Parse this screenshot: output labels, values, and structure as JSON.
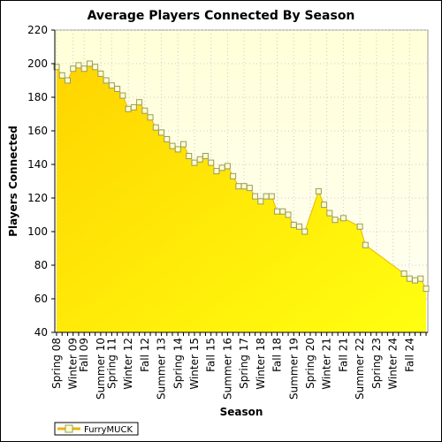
{
  "chart_data": {
    "type": "area",
    "title": "Average Players Connected By Season",
    "xlabel": "Season",
    "ylabel": "Players Connected",
    "ylim": [
      40,
      220
    ],
    "yticks": [
      40,
      60,
      80,
      100,
      120,
      140,
      160,
      180,
      200,
      220
    ],
    "grid": true,
    "legend_position": "bottom-left",
    "colors": {
      "area_top": "#ffd700",
      "area_bottom": "#ffff00",
      "plot_bg_top": "#ffffd8",
      "plot_bg_bottom": "#fffff0",
      "marker_fill": "#ffffcc",
      "marker_stroke": "#999966"
    },
    "x_tick_labels": [
      {
        "index": 0,
        "label": "Spring 08"
      },
      {
        "index": 3,
        "label": "Winter 09"
      },
      {
        "index": 5,
        "label": "Fall 09"
      },
      {
        "index": 8,
        "label": "Summer 10"
      },
      {
        "index": 10,
        "label": "Spring 11"
      },
      {
        "index": 13,
        "label": "Winter 12"
      },
      {
        "index": 16,
        "label": "Fall 12"
      },
      {
        "index": 19,
        "label": "Summer 13"
      },
      {
        "index": 22,
        "label": "Spring 14"
      },
      {
        "index": 25,
        "label": "Winter 15"
      },
      {
        "index": 28,
        "label": "Fall 15"
      },
      {
        "index": 31,
        "label": "Summer 16"
      },
      {
        "index": 34,
        "label": "Spring 17"
      },
      {
        "index": 37,
        "label": "Winter 18"
      },
      {
        "index": 40,
        "label": "Fall 18"
      },
      {
        "index": 43,
        "label": "Summer 19"
      },
      {
        "index": 46,
        "label": "Spring 20"
      },
      {
        "index": 49,
        "label": "Winter 21"
      },
      {
        "index": 52,
        "label": "Fall 21"
      },
      {
        "index": 55,
        "label": "Summer 22"
      },
      {
        "index": 58,
        "label": "Spring 23"
      },
      {
        "index": 61,
        "label": "Winter 24"
      },
      {
        "index": 64,
        "label": "Fall 24"
      }
    ],
    "n_points": 68,
    "series": [
      {
        "name": "FurryMUCK",
        "points": [
          [
            0,
            198
          ],
          [
            1,
            193
          ],
          [
            2,
            190
          ],
          [
            3,
            197
          ],
          [
            4,
            199
          ],
          [
            5,
            197
          ],
          [
            6,
            200
          ],
          [
            7,
            198
          ],
          [
            8,
            194
          ],
          [
            9,
            190
          ],
          [
            10,
            187
          ],
          [
            11,
            185
          ],
          [
            12,
            181
          ],
          [
            13,
            173
          ],
          [
            14,
            174
          ],
          [
            15,
            177
          ],
          [
            16,
            172
          ],
          [
            17,
            168
          ],
          [
            18,
            162
          ],
          [
            19,
            159
          ],
          [
            20,
            155
          ],
          [
            21,
            151
          ],
          [
            22,
            149
          ],
          [
            23,
            152
          ],
          [
            24,
            145
          ],
          [
            25,
            141
          ],
          [
            26,
            143
          ],
          [
            27,
            145
          ],
          [
            28,
            141
          ],
          [
            29,
            136
          ],
          [
            30,
            138
          ],
          [
            31,
            139
          ],
          [
            32,
            133
          ],
          [
            33,
            127
          ],
          [
            34,
            127
          ],
          [
            35,
            126
          ],
          [
            36,
            121
          ],
          [
            37,
            118
          ],
          [
            38,
            121
          ],
          [
            39,
            121
          ],
          [
            40,
            112
          ],
          [
            41,
            112
          ],
          [
            42,
            110
          ],
          [
            43,
            104
          ],
          [
            44,
            103
          ],
          [
            45,
            100
          ],
          [
            47.5,
            124
          ],
          [
            48.5,
            116
          ],
          [
            49.5,
            111
          ],
          [
            50.5,
            107
          ],
          [
            52,
            108
          ],
          [
            55,
            103
          ],
          [
            56,
            92
          ],
          [
            63,
            75
          ],
          [
            64,
            72
          ],
          [
            65,
            71
          ],
          [
            66,
            72
          ],
          [
            67,
            66
          ]
        ]
      }
    ]
  }
}
